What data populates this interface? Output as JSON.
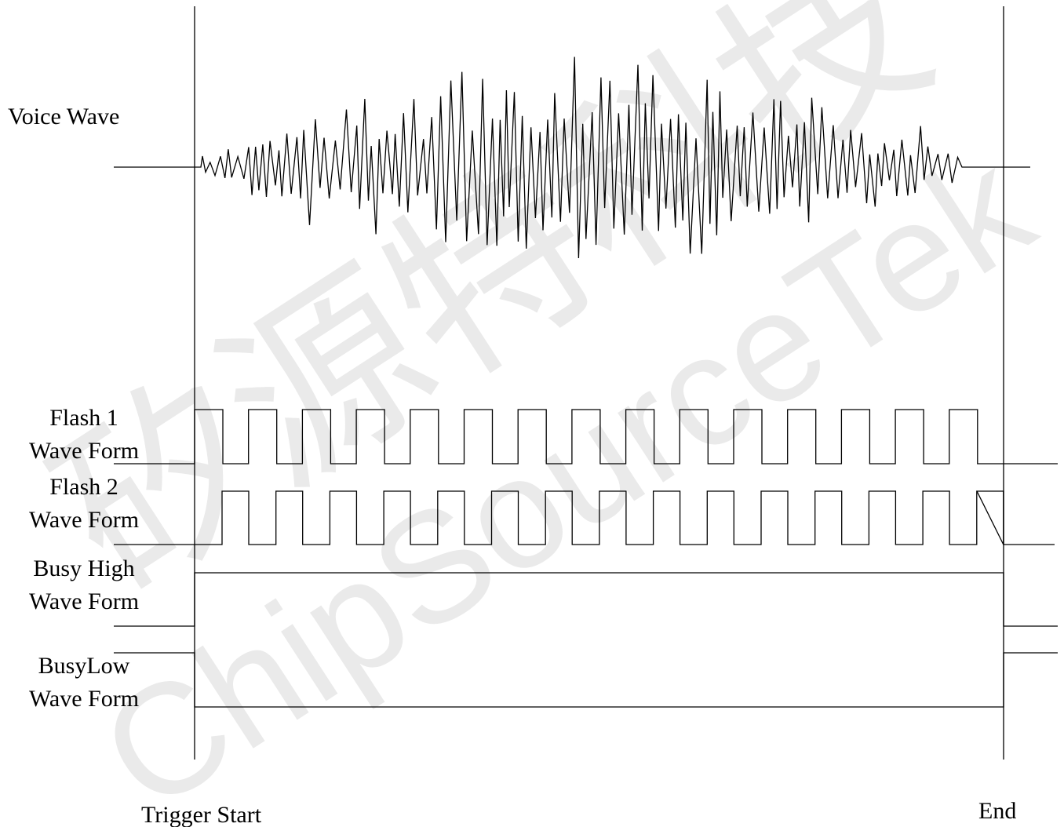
{
  "labels": {
    "voice_wave": "Voice Wave",
    "flash1_line1": "Flash 1",
    "flash1_line2": "Wave Form",
    "flash2_line1": "Flash  2",
    "flash2_line2": "Wave Form",
    "busy_high_line1": "Busy High",
    "busy_high_line2": "Wave Form",
    "busy_low_line1": "BusyLow",
    "busy_low_line2": "Wave Form",
    "trigger_start": "Trigger Start",
    "end": "End"
  },
  "watermark": {
    "text_cn": "矽源特科技",
    "text_en": "ChipSourceTek"
  },
  "colors": {
    "line": "#000000",
    "watermark": "#d9d9d9",
    "background": "#ffffff"
  }
}
